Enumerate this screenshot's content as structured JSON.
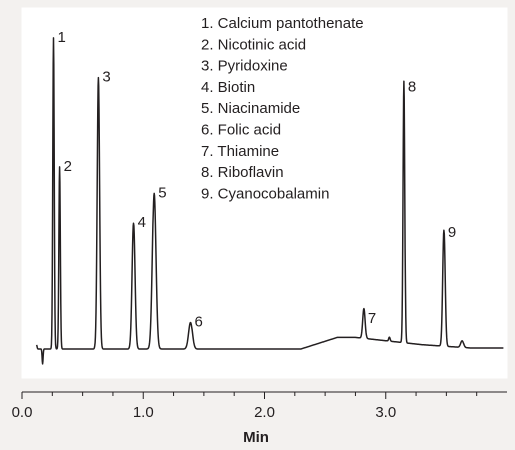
{
  "chart_data": {
    "type": "line",
    "title": "",
    "xlabel": "Min",
    "ylabel": "",
    "xlim": [
      0.0,
      4.0
    ],
    "x_ticks": [
      "0.0",
      "1.0",
      "2.0",
      "3.0"
    ],
    "x_tick_values": [
      0.0,
      1.0,
      2.0,
      3.0
    ],
    "grid": false,
    "legend": [
      "1. Calcium pantothenate",
      "2. Nicotinic acid",
      "3. Pyridoxine",
      "4. Biotin",
      "5. Niacinamide",
      "6. Folic acid",
      "7. Thiamine",
      "8. Riboflavin",
      "9. Cyanocobalamin"
    ],
    "legend_position": "top-center",
    "peaks": [
      {
        "label": "1",
        "x": 0.26,
        "height": 0.94
      },
      {
        "label": "2",
        "x": 0.31,
        "height": 0.55
      },
      {
        "label": "3",
        "x": 0.63,
        "height": 0.82
      },
      {
        "label": "4",
        "x": 0.92,
        "height": 0.38
      },
      {
        "label": "5",
        "x": 1.09,
        "height": 0.47
      },
      {
        "label": "6",
        "x": 1.39,
        "height": 0.08
      },
      {
        "label": "7",
        "x": 2.82,
        "height": 0.09
      },
      {
        "label": "8",
        "x": 3.15,
        "height": 0.79
      },
      {
        "label": "9",
        "x": 3.48,
        "height": 0.35
      }
    ]
  }
}
